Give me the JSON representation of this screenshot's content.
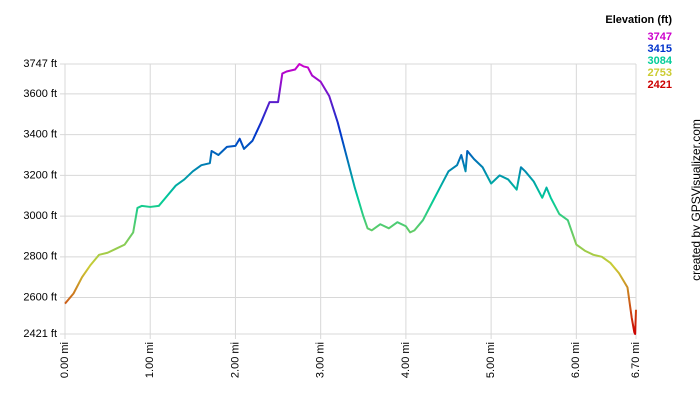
{
  "chart_data": {
    "type": "line",
    "x": [
      0,
      0.1,
      0.2,
      0.3,
      0.4,
      0.5,
      0.6,
      0.7,
      0.8,
      0.85,
      0.9,
      1.0,
      1.1,
      1.2,
      1.3,
      1.4,
      1.5,
      1.6,
      1.7,
      1.72,
      1.8,
      1.9,
      2.0,
      2.05,
      2.1,
      2.2,
      2.3,
      2.4,
      2.5,
      2.55,
      2.6,
      2.7,
      2.75,
      2.8,
      2.85,
      2.9,
      3.0,
      3.1,
      3.2,
      3.3,
      3.4,
      3.5,
      3.55,
      3.6,
      3.7,
      3.8,
      3.9,
      4.0,
      4.05,
      4.1,
      4.2,
      4.3,
      4.4,
      4.5,
      4.6,
      4.65,
      4.7,
      4.72,
      4.8,
      4.9,
      5.0,
      5.1,
      5.2,
      5.3,
      5.35,
      5.4,
      5.5,
      5.6,
      5.65,
      5.7,
      5.8,
      5.9,
      6.0,
      6.1,
      6.2,
      6.3,
      6.4,
      6.5,
      6.6,
      6.65,
      6.68,
      6.69,
      6.7
    ],
    "values": [
      2570,
      2620,
      2700,
      2760,
      2810,
      2820,
      2840,
      2860,
      2920,
      3040,
      3050,
      3045,
      3050,
      3100,
      3150,
      3180,
      3220,
      3250,
      3260,
      3320,
      3300,
      3340,
      3345,
      3380,
      3330,
      3370,
      3460,
      3560,
      3560,
      3700,
      3710,
      3720,
      3747,
      3735,
      3730,
      3690,
      3660,
      3590,
      3460,
      3300,
      3140,
      3000,
      2940,
      2930,
      2960,
      2940,
      2970,
      2950,
      2920,
      2930,
      2980,
      3060,
      3140,
      3220,
      3250,
      3300,
      3220,
      3320,
      3280,
      3240,
      3160,
      3200,
      3180,
      3130,
      3240,
      3220,
      3170,
      3090,
      3140,
      3090,
      3010,
      2980,
      2860,
      2830,
      2810,
      2800,
      2770,
      2720,
      2650,
      2500,
      2430,
      2421,
      2540
    ],
    "xlim": [
      0,
      6.7
    ],
    "xticks": [
      {
        "value": 0,
        "label": "0.00 mi"
      },
      {
        "value": 1,
        "label": "1.00 mi"
      },
      {
        "value": 2,
        "label": "2.00 mi"
      },
      {
        "value": 3,
        "label": "3.00 mi"
      },
      {
        "value": 4,
        "label": "4.00 mi"
      },
      {
        "value": 5,
        "label": "5.00 mi"
      },
      {
        "value": 6,
        "label": "6.00 mi"
      },
      {
        "value": 6.7,
        "label": "6.70 mi"
      }
    ],
    "ylim": [
      2421,
      3747
    ],
    "yticks": [
      {
        "value": 2421,
        "label": "2421 ft"
      },
      {
        "value": 2600,
        "label": "2600 ft"
      },
      {
        "value": 2800,
        "label": "2800 ft"
      },
      {
        "value": 3000,
        "label": "3000 ft"
      },
      {
        "value": 3200,
        "label": "3200 ft"
      },
      {
        "value": 3400,
        "label": "3400 ft"
      },
      {
        "value": 3600,
        "label": "3600 ft"
      },
      {
        "value": 3747,
        "label": "3747 ft"
      }
    ],
    "grid": true,
    "legend_title": "Elevation (ft)",
    "legend": [
      {
        "value": 3747,
        "color": "#cc00cc"
      },
      {
        "value": 3415,
        "color": "#0033cc"
      },
      {
        "value": 3084,
        "color": "#00cc99"
      },
      {
        "value": 2753,
        "color": "#cccc33"
      },
      {
        "value": 2421,
        "color": "#cc0000"
      }
    ],
    "credit": "created by GPSVisualizer.com"
  }
}
